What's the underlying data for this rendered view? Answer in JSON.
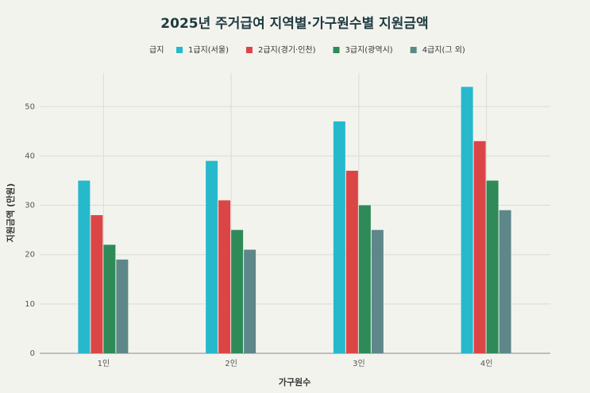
{
  "chart_data": {
    "type": "bar",
    "title": "2025년 주거급여 지역별·가구원수별 지원금액",
    "legend_title": "급지",
    "x_label": "가구원수",
    "y_label": "지원금액 (만원)",
    "categories": [
      "1인",
      "2인",
      "3인",
      "4인"
    ],
    "series": [
      {
        "name": "1급지(서울)",
        "color": "#26b9cc",
        "values": [
          35,
          39,
          47,
          54
        ]
      },
      {
        "name": "2급지(경기·인천)",
        "color": "#dc4545",
        "values": [
          28,
          31,
          37,
          43
        ]
      },
      {
        "name": "3급지(광역시)",
        "color": "#2e8b57",
        "values": [
          22,
          25,
          30,
          35
        ]
      },
      {
        "name": "4급지(그 외)",
        "color": "#5e8789",
        "values": [
          19,
          21,
          25,
          29
        ]
      }
    ],
    "ylim": [
      0,
      56.8
    ],
    "yticks": [
      0,
      10,
      20,
      30,
      40,
      50
    ],
    "grid": true
  }
}
